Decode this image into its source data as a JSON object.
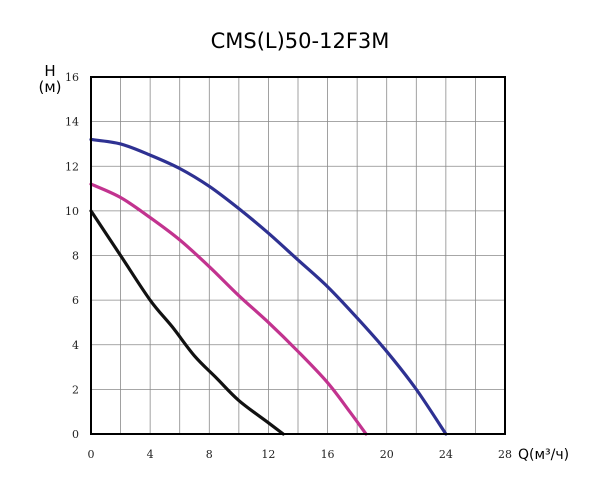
{
  "chart_data": {
    "type": "line",
    "title": "CMS(L)50-12F3M",
    "ylabel_main": "H",
    "ylabel_unit": "(м)",
    "xlabel": "Q(м³/ч)",
    "xlim": [
      0,
      28
    ],
    "ylim": [
      0,
      16
    ],
    "x_ticks": [
      0,
      4,
      8,
      12,
      16,
      20,
      24,
      28
    ],
    "y_ticks": [
      0,
      2,
      4,
      6,
      8,
      10,
      12,
      14,
      16
    ],
    "x_grid_step": 2,
    "y_grid_step": 2,
    "grid": true,
    "series": [
      {
        "color": "#2e3192",
        "points": [
          [
            0,
            13.2
          ],
          [
            2,
            13.0
          ],
          [
            4,
            12.5
          ],
          [
            6,
            11.9
          ],
          [
            8,
            11.1
          ],
          [
            10,
            10.1
          ],
          [
            12,
            9.0
          ],
          [
            14,
            7.8
          ],
          [
            16,
            6.6
          ],
          [
            18,
            5.2
          ],
          [
            20,
            3.7
          ],
          [
            22,
            2.0
          ],
          [
            24,
            0.0
          ]
        ]
      },
      {
        "color": "#c2338f",
        "points": [
          [
            0,
            11.2
          ],
          [
            2,
            10.6
          ],
          [
            4,
            9.7
          ],
          [
            6,
            8.7
          ],
          [
            8,
            7.5
          ],
          [
            10,
            6.2
          ],
          [
            12,
            5.0
          ],
          [
            14,
            3.7
          ],
          [
            16,
            2.3
          ],
          [
            17.5,
            1.0
          ],
          [
            18.6,
            0.0
          ]
        ]
      },
      {
        "color": "#111111",
        "points": [
          [
            0,
            10.0
          ],
          [
            2,
            8.0
          ],
          [
            4,
            6.0
          ],
          [
            5.5,
            4.8
          ],
          [
            7,
            3.5
          ],
          [
            8.5,
            2.5
          ],
          [
            10,
            1.5
          ],
          [
            12,
            0.5
          ],
          [
            13,
            0.0
          ]
        ]
      }
    ]
  }
}
